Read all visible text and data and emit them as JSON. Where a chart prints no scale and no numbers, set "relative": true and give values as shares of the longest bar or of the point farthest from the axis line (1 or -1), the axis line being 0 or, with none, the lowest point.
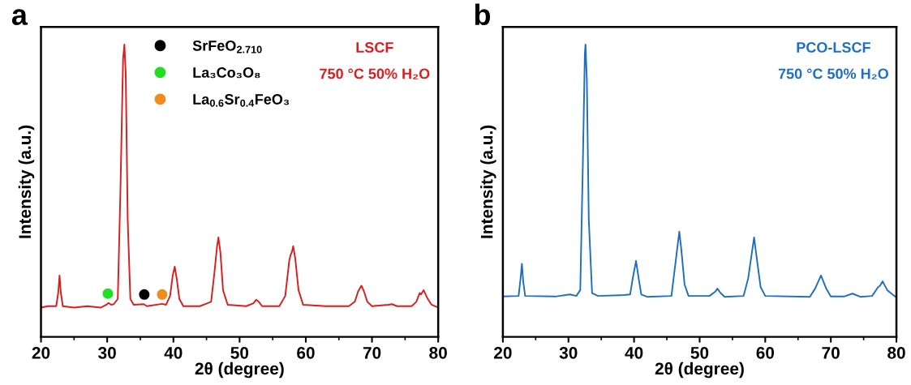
{
  "chart_data": [
    {
      "type": "line",
      "title": "a",
      "xlabel": "2θ (degree)",
      "ylabel": "Intensity (a.u.)",
      "relative": true,
      "tick_labels": "x",
      "legend": "top left",
      "grid": false,
      "marker": "none",
      "line_style": "solid",
      "xlim": [
        20,
        80
      ],
      "xticks": [
        20,
        {
          "value": 25,
          "label": null
        },
        30,
        {
          "value": 35,
          "label": null
        },
        40,
        {
          "value": 45,
          "label": null
        },
        50,
        {
          "value": 55,
          "label": null
        },
        60,
        {
          "value": 65,
          "label": null
        },
        70,
        {
          "value": 75,
          "label": null
        },
        80
      ],
      "annotations": [
        "LSCF",
        "750 °C 50% H₂O"
      ],
      "series": [
        {
          "color": "#d81e1e",
          "x": [
            20,
            21,
            22.3,
            22.6,
            22.8,
            23.0,
            23.3,
            25,
            27,
            29,
            29.9,
            30.2,
            30.6,
            31.0,
            31.6,
            32.0,
            32.4,
            32.6,
            32.8,
            33.1,
            33.5,
            34,
            35.5,
            36,
            38.3,
            38.9,
            39.5,
            39.9,
            40.2,
            40.5,
            40.9,
            41.5,
            44,
            45.7,
            46.2,
            46.6,
            46.8,
            47.1,
            47.5,
            48.2,
            51,
            52.1,
            52.5,
            52.9,
            53.4,
            56,
            56.9,
            57.5,
            57.7,
            57.9,
            58.1,
            58.4,
            58.9,
            59.6,
            63,
            66.5,
            67.4,
            67.9,
            68.4,
            68.8,
            69.3,
            70,
            72.5,
            73,
            73.8,
            76,
            76.7,
            77.2,
            77.4,
            77.8,
            78.3,
            79,
            80
          ],
          "values": [
            0.1,
            0.105,
            0.105,
            0.15,
            0.21,
            0.15,
            0.105,
            0.1,
            0.105,
            0.1,
            0.11,
            0.116,
            0.11,
            0.112,
            0.13,
            0.5,
            0.95,
            1.0,
            0.9,
            0.4,
            0.13,
            0.11,
            0.112,
            0.105,
            0.113,
            0.11,
            0.14,
            0.21,
            0.24,
            0.2,
            0.13,
            0.105,
            0.105,
            0.12,
            0.22,
            0.31,
            0.34,
            0.29,
            0.16,
            0.11,
            0.105,
            0.115,
            0.127,
            0.12,
            0.105,
            0.105,
            0.14,
            0.26,
            0.28,
            0.29,
            0.31,
            0.27,
            0.16,
            0.11,
            0.105,
            0.105,
            0.12,
            0.155,
            0.175,
            0.155,
            0.12,
            0.105,
            0.11,
            0.112,
            0.105,
            0.105,
            0.12,
            0.15,
            0.145,
            0.16,
            0.135,
            0.11,
            0.1
          ]
        },
        {
          "type": "scatter",
          "name": "SrFeO$_{2.710}$",
          "color": "#000000",
          "marker": "circle",
          "x": [
            35.6
          ],
          "values": [
            0.145
          ]
        },
        {
          "type": "scatter",
          "name": "La₃Co₃O₈",
          "color": "#22dd22",
          "marker": "circle",
          "x": [
            30.1
          ],
          "values": [
            0.148
          ]
        },
        {
          "type": "scatter",
          "name": "La$_{0.6}$Sr$_{0.4}$FeO₃",
          "color": "#f28a1e",
          "marker": "circle",
          "x": [
            38.3
          ],
          "values": [
            0.145
          ]
        }
      ]
    },
    {
      "type": "line",
      "title": "b",
      "xlabel": "2θ (degree)",
      "ylabel": "Intensity (a.u.)",
      "relative": true,
      "tick_labels": "x",
      "grid": false,
      "marker": "none",
      "line_style": "solid",
      "xlim": [
        20,
        80
      ],
      "xticks": [
        20,
        {
          "value": 25,
          "label": null
        },
        30,
        {
          "value": 35,
          "label": null
        },
        40,
        {
          "value": 45,
          "label": null
        },
        50,
        {
          "value": 55,
          "label": null
        },
        60,
        {
          "value": 65,
          "label": null
        },
        70,
        {
          "value": 75,
          "label": null
        },
        80
      ],
      "annotations": [
        "PCO-LSCF",
        "750 °C 50% H₂O"
      ],
      "series": [
        {
          "color": "#1f6fc0",
          "x": [
            20,
            22.4,
            22.7,
            22.9,
            23.1,
            23.4,
            28,
            30.2,
            31.2,
            31.8,
            32.2,
            32.5,
            32.6,
            32.8,
            33.1,
            33.6,
            34.5,
            38.5,
            39.4,
            39.8,
            40.3,
            40.7,
            41.1,
            42,
            45.7,
            46.3,
            46.9,
            47.2,
            47.7,
            48.3,
            51.5,
            52.4,
            52.7,
            53.2,
            53.8,
            56.7,
            57.4,
            58.3,
            58.7,
            59.3,
            60,
            66.8,
            67.6,
            68.5,
            69.3,
            70,
            72,
            73.3,
            74.5,
            76.3,
            77.2,
            77.5,
            77.9,
            78.6,
            79.4,
            80
          ],
          "values": [
            0.138,
            0.14,
            0.2,
            0.25,
            0.19,
            0.14,
            0.138,
            0.145,
            0.14,
            0.16,
            0.6,
            0.97,
            1.0,
            0.88,
            0.4,
            0.15,
            0.14,
            0.143,
            0.145,
            0.2,
            0.26,
            0.2,
            0.145,
            0.137,
            0.14,
            0.25,
            0.36,
            0.3,
            0.18,
            0.14,
            0.14,
            0.155,
            0.165,
            0.15,
            0.137,
            0.14,
            0.2,
            0.34,
            0.27,
            0.17,
            0.14,
            0.137,
            0.165,
            0.21,
            0.165,
            0.138,
            0.138,
            0.148,
            0.137,
            0.14,
            0.17,
            0.175,
            0.19,
            0.16,
            0.145,
            0.135
          ]
        }
      ]
    }
  ]
}
